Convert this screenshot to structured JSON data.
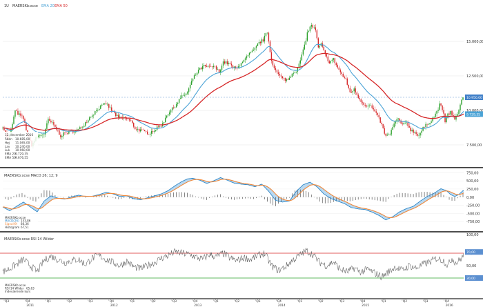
{
  "chart_data": [
    {
      "type": "candlestick",
      "header": {
        "interval": "1U",
        "symbol": "MAERSKb:xcse",
        "ema20_label": "EMA 20",
        "ema50_label": "EMA 50"
      },
      "ylim": [
        6000,
        17800
      ],
      "y_ticks": [
        {
          "value": 15000,
          "label": "15.000,00"
        },
        {
          "value": 12500,
          "label": "12.500,00"
        },
        {
          "value": 10000,
          "label": "10.000,00"
        },
        {
          "value": 7500,
          "label": "7.500,00"
        }
      ],
      "last_price_label": "10.950,00",
      "last_price": 10950,
      "colors": {
        "up": "#2ca02c",
        "down": "#d62728",
        "ema20": "#4aa3d6",
        "ema50": "#d62728",
        "price_line": "#6f9bd1"
      },
      "anchors_close": [
        [
          0,
          8850
        ],
        [
          8,
          7850
        ],
        [
          12,
          8600
        ],
        [
          18,
          9950
        ],
        [
          30,
          9400
        ],
        [
          36,
          8250
        ],
        [
          42,
          7500
        ],
        [
          50,
          8100
        ],
        [
          60,
          8300
        ],
        [
          66,
          9300
        ],
        [
          72,
          9050
        ],
        [
          78,
          8650
        ],
        [
          84,
          8150
        ],
        [
          90,
          8350
        ],
        [
          98,
          8450
        ],
        [
          110,
          8600
        ],
        [
          118,
          9000
        ],
        [
          128,
          9600
        ],
        [
          140,
          10200
        ],
        [
          150,
          10500
        ],
        [
          158,
          10000
        ],
        [
          168,
          9450
        ],
        [
          178,
          9450
        ],
        [
          186,
          9200
        ],
        [
          192,
          8700
        ],
        [
          202,
          8500
        ],
        [
          212,
          8350
        ],
        [
          222,
          8650
        ],
        [
          232,
          9000
        ],
        [
          238,
          9700
        ],
        [
          248,
          10200
        ],
        [
          258,
          10900
        ],
        [
          268,
          11300
        ],
        [
          276,
          12300
        ],
        [
          284,
          12900
        ],
        [
          292,
          13200
        ],
        [
          300,
          13100
        ],
        [
          306,
          13200
        ],
        [
          314,
          12800
        ],
        [
          320,
          13500
        ],
        [
          328,
          13400
        ],
        [
          334,
          13100
        ],
        [
          340,
          13000
        ],
        [
          346,
          13500
        ],
        [
          352,
          13700
        ],
        [
          358,
          14100
        ],
        [
          364,
          14300
        ],
        [
          372,
          14900
        ],
        [
          378,
          15100
        ],
        [
          384,
          15700
        ],
        [
          390,
          13600
        ],
        [
          398,
          12700
        ],
        [
          406,
          12300
        ],
        [
          414,
          12200
        ],
        [
          420,
          12700
        ],
        [
          428,
          13000
        ],
        [
          436,
          14300
        ],
        [
          442,
          15600
        ],
        [
          448,
          16200
        ],
        [
          454,
          15800
        ],
        [
          458,
          14500
        ],
        [
          462,
          14800
        ],
        [
          468,
          14000
        ],
        [
          474,
          13500
        ],
        [
          480,
          13700
        ],
        [
          486,
          13100
        ],
        [
          492,
          12600
        ],
        [
          498,
          12200
        ],
        [
          504,
          11300
        ],
        [
          510,
          11500
        ],
        [
          518,
          10800
        ],
        [
          526,
          10400
        ],
        [
          534,
          10300
        ],
        [
          540,
          9900
        ],
        [
          548,
          9200
        ],
        [
          556,
          8100
        ],
        [
          562,
          8300
        ],
        [
          568,
          9000
        ],
        [
          574,
          9400
        ],
        [
          580,
          8900
        ],
        [
          586,
          9100
        ],
        [
          592,
          8600
        ],
        [
          598,
          8400
        ],
        [
          604,
          8200
        ],
        [
          610,
          8700
        ],
        [
          616,
          9000
        ],
        [
          622,
          9300
        ],
        [
          628,
          9700
        ],
        [
          634,
          10400
        ],
        [
          638,
          10100
        ],
        [
          642,
          9200
        ],
        [
          646,
          9700
        ],
        [
          650,
          9900
        ],
        [
          656,
          9300
        ],
        [
          660,
          9700
        ],
        [
          664,
          10500
        ],
        [
          668,
          10950
        ]
      ],
      "ema20_label_value": "9.729,35",
      "ema50_label_value": "9.676,55",
      "legend_box": {
        "date": "12. december 2016",
        "rows": [
          {
            "label": "Åben",
            "value": "10.685,00"
          },
          {
            "label": "Høj",
            "value": "11.065,00"
          },
          {
            "label": "Lav",
            "value": "10.240,00"
          },
          {
            "label": "Luk",
            "value": "10.960,00"
          },
          {
            "label": "EMA 20",
            "value": "9.729,35"
          },
          {
            "label": "EMA 50",
            "value": "9.676,55"
          }
        ]
      }
    },
    {
      "type": "macd",
      "title": "MAERSKb:xcse MACD 26; 12; 9",
      "ylim": [
        -1000,
        800
      ],
      "y_ticks": [
        {
          "value": 750,
          "label": "750,00"
        },
        {
          "value": 500,
          "label": "500,00"
        },
        {
          "value": 250,
          "label": "250,00"
        },
        {
          "value": 0,
          "label": "0,00"
        },
        {
          "value": -250,
          "label": "-250,00"
        },
        {
          "value": -500,
          "label": "-500,00"
        },
        {
          "value": -750,
          "label": "-750,00"
        }
      ],
      "anchors_macd": [
        [
          0,
          -300
        ],
        [
          10,
          -420
        ],
        [
          20,
          -280
        ],
        [
          30,
          -150
        ],
        [
          40,
          -300
        ],
        [
          50,
          -450
        ],
        [
          60,
          -120
        ],
        [
          70,
          40
        ],
        [
          80,
          -30
        ],
        [
          90,
          -60
        ],
        [
          100,
          10
        ],
        [
          110,
          60
        ],
        [
          120,
          20
        ],
        [
          130,
          30
        ],
        [
          140,
          80
        ],
        [
          150,
          150
        ],
        [
          160,
          100
        ],
        [
          170,
          20
        ],
        [
          180,
          40
        ],
        [
          190,
          -50
        ],
        [
          200,
          -80
        ],
        [
          210,
          -20
        ],
        [
          220,
          40
        ],
        [
          230,
          100
        ],
        [
          240,
          200
        ],
        [
          250,
          350
        ],
        [
          260,
          480
        ],
        [
          268,
          560
        ],
        [
          276,
          580
        ],
        [
          286,
          520
        ],
        [
          296,
          420
        ],
        [
          306,
          500
        ],
        [
          316,
          600
        ],
        [
          326,
          520
        ],
        [
          336,
          430
        ],
        [
          346,
          400
        ],
        [
          356,
          380
        ],
        [
          366,
          320
        ],
        [
          376,
          400
        ],
        [
          386,
          180
        ],
        [
          396,
          -100
        ],
        [
          406,
          -150
        ],
        [
          416,
          -120
        ],
        [
          426,
          180
        ],
        [
          436,
          380
        ],
        [
          446,
          460
        ],
        [
          456,
          320
        ],
        [
          466,
          100
        ],
        [
          476,
          -40
        ],
        [
          486,
          -120
        ],
        [
          496,
          -200
        ],
        [
          506,
          -320
        ],
        [
          516,
          -360
        ],
        [
          526,
          -380
        ],
        [
          536,
          -460
        ],
        [
          546,
          -560
        ],
        [
          556,
          -700
        ],
        [
          566,
          -600
        ],
        [
          576,
          -450
        ],
        [
          586,
          -350
        ],
        [
          596,
          -280
        ],
        [
          606,
          -120
        ],
        [
          616,
          20
        ],
        [
          626,
          120
        ],
        [
          636,
          260
        ],
        [
          644,
          200
        ],
        [
          650,
          80
        ],
        [
          656,
          20
        ],
        [
          662,
          80
        ],
        [
          668,
          200
        ]
      ],
      "legend_box": {
        "rows": [
          {
            "label": "MAERSKb:xcse",
            "value": ""
          },
          {
            "label": "MACD(26)",
            "value": "153,86"
          },
          {
            "label": "Signal(9)",
            "value": "86,36"
          },
          {
            "label": "Histogram",
            "value": "67,51"
          }
        ]
      }
    },
    {
      "type": "rsi",
      "title": "MAERSKb:xcse RSI 14 Wilder",
      "ylim": [
        0,
        100
      ],
      "y_ticks": [
        {
          "value": 100,
          "label": "100,00"
        },
        {
          "value": 70,
          "label": "70,00"
        },
        {
          "value": 50,
          "label": "50,00"
        },
        {
          "value": 30,
          "label": "30,00"
        }
      ],
      "overbought": 70,
      "oversold": 30,
      "anchors_rsi": [
        [
          0,
          40
        ],
        [
          10,
          45
        ],
        [
          20,
          52
        ],
        [
          30,
          60
        ],
        [
          40,
          50
        ],
        [
          50,
          40
        ],
        [
          60,
          58
        ],
        [
          70,
          65
        ],
        [
          80,
          60
        ],
        [
          90,
          55
        ],
        [
          100,
          58
        ],
        [
          110,
          60
        ],
        [
          120,
          52
        ],
        [
          130,
          62
        ],
        [
          140,
          66
        ],
        [
          150,
          60
        ],
        [
          160,
          55
        ],
        [
          170,
          50
        ],
        [
          180,
          57
        ],
        [
          190,
          48
        ],
        [
          200,
          45
        ],
        [
          210,
          50
        ],
        [
          220,
          55
        ],
        [
          230,
          62
        ],
        [
          240,
          66
        ],
        [
          250,
          72
        ],
        [
          260,
          70
        ],
        [
          270,
          68
        ],
        [
          280,
          64
        ],
        [
          290,
          60
        ],
        [
          300,
          68
        ],
        [
          310,
          64
        ],
        [
          320,
          70
        ],
        [
          330,
          62
        ],
        [
          340,
          58
        ],
        [
          350,
          63
        ],
        [
          360,
          60
        ],
        [
          370,
          66
        ],
        [
          380,
          70
        ],
        [
          390,
          50
        ],
        [
          400,
          42
        ],
        [
          410,
          48
        ],
        [
          420,
          58
        ],
        [
          430,
          66
        ],
        [
          440,
          74
        ],
        [
          450,
          68
        ],
        [
          460,
          55
        ],
        [
          470,
          50
        ],
        [
          480,
          56
        ],
        [
          490,
          44
        ],
        [
          500,
          40
        ],
        [
          510,
          46
        ],
        [
          520,
          40
        ],
        [
          530,
          44
        ],
        [
          540,
          38
        ],
        [
          550,
          32
        ],
        [
          560,
          40
        ],
        [
          570,
          48
        ],
        [
          580,
          42
        ],
        [
          590,
          50
        ],
        [
          600,
          46
        ],
        [
          610,
          52
        ],
        [
          620,
          56
        ],
        [
          630,
          62
        ],
        [
          640,
          58
        ],
        [
          646,
          50
        ],
        [
          652,
          62
        ],
        [
          658,
          54
        ],
        [
          664,
          60
        ],
        [
          668,
          65
        ]
      ],
      "legend_box": {
        "rows": [
          {
            "label": "MAERSKb:xcse",
            "value": ""
          },
          {
            "label": "RSI 14 Wilder",
            "value": "65,63"
          },
          {
            "label": "Indeværende kurs",
            "value": ""
          }
        ]
      },
      "last_value_label": "70,00",
      "low_value_label": "30,00"
    }
  ],
  "x_axis": {
    "quarters": [
      "Q3",
      "Q4",
      "Q1",
      "Q2",
      "Q3",
      "Q4",
      "Q1",
      "Q2",
      "Q3",
      "Q4",
      "Q1",
      "Q2",
      "Q3",
      "Q4",
      "Q1",
      "Q2",
      "Q3",
      "Q4",
      "Q1",
      "Q2",
      "Q3",
      "Q4"
    ],
    "years": [
      "2011",
      "2012",
      "2013",
      "2014",
      "2015",
      "2016"
    ]
  }
}
